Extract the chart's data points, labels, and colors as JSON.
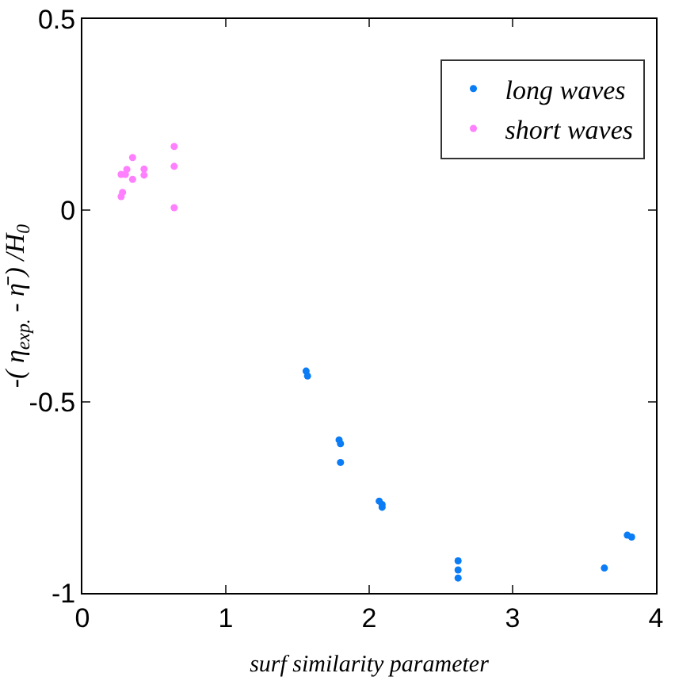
{
  "chart_data": {
    "type": "scatter",
    "xlabel": "surf similarity parameter",
    "ylabel": "-( η$_{exp.}$ - η̄ ) /H$_{0}$",
    "xlim": [
      0,
      4
    ],
    "xticks": [
      0,
      1,
      2,
      3,
      4
    ],
    "ylim": [
      -1,
      0.5
    ],
    "yticks": [
      -1,
      -0.5,
      0,
      0.5
    ],
    "grid": false,
    "legend": "top right",
    "marker": "circle",
    "series": [
      {
        "name": "long waves",
        "color": "#0a7cf5",
        "x": [
          1.56,
          1.57,
          1.79,
          1.8,
          1.8,
          2.07,
          2.09,
          2.09,
          2.62,
          2.62,
          2.62,
          3.64,
          3.8,
          3.83
        ],
        "values": [
          -0.42,
          -0.433,
          -0.6,
          -0.61,
          -0.659,
          -0.76,
          -0.776,
          -0.769,
          -0.916,
          -0.94,
          -0.961,
          -0.935,
          -0.849,
          -0.854
        ]
      },
      {
        "name": "short waves",
        "color": "#ff80ff",
        "x": [
          0.27,
          0.28,
          0.27,
          0.31,
          0.3,
          0.35,
          0.35,
          0.43,
          0.43,
          0.64,
          0.64,
          0.64
        ],
        "values": [
          0.094,
          0.047,
          0.036,
          0.107,
          0.094,
          0.138,
          0.081,
          0.108,
          0.092,
          0.167,
          0.115,
          0.007
        ]
      }
    ]
  }
}
